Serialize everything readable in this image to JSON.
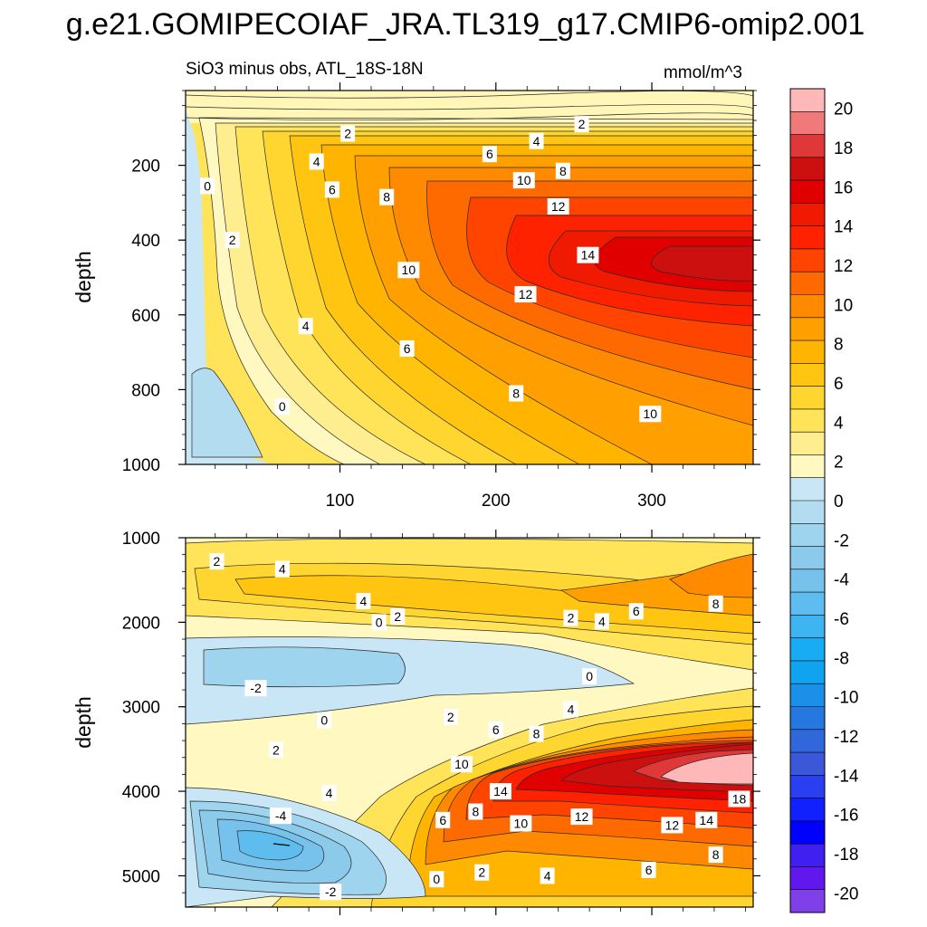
{
  "chart_data": {
    "type": "heatmap",
    "title": "g.e21.GOMIPECOIAF_JRA.TL319_g17.CMIP6-omip2.001",
    "subtitle_left": "SiO3 minus obs, ATL_18S-18N",
    "subtitle_right": "mmol/m^3",
    "panels": [
      {
        "name": "upper",
        "ylabel": "depth",
        "ylim": [
          1000,
          0
        ],
        "yticks": [
          200,
          400,
          600,
          800,
          1000
        ],
        "xlim": [
          1,
          365
        ],
        "xticks": [
          100,
          200,
          300
        ],
        "xtick_labels_shown": true,
        "contour_labels": [
          {
            "x": 15,
            "y": 255,
            "text": "0"
          },
          {
            "x": 31,
            "y": 400,
            "text": "2"
          },
          {
            "x": 63,
            "y": 845,
            "text": "0"
          },
          {
            "x": 78,
            "y": 630,
            "text": "4"
          },
          {
            "x": 85,
            "y": 190,
            "text": "4"
          },
          {
            "x": 95,
            "y": 265,
            "text": "6"
          },
          {
            "x": 105,
            "y": 115,
            "text": "2"
          },
          {
            "x": 130,
            "y": 285,
            "text": "8"
          },
          {
            "x": 143,
            "y": 690,
            "text": "6"
          },
          {
            "x": 144,
            "y": 480,
            "text": "10"
          },
          {
            "x": 196,
            "y": 170,
            "text": "6"
          },
          {
            "x": 213,
            "y": 810,
            "text": "8"
          },
          {
            "x": 218,
            "y": 240,
            "text": "10"
          },
          {
            "x": 219,
            "y": 545,
            "text": "12"
          },
          {
            "x": 226,
            "y": 135,
            "text": "4"
          },
          {
            "x": 240,
            "y": 310,
            "text": "12"
          },
          {
            "x": 243,
            "y": 215,
            "text": "8"
          },
          {
            "x": 259,
            "y": 440,
            "text": "14"
          },
          {
            "x": 255,
            "y": 90,
            "text": "2"
          },
          {
            "x": 299,
            "y": 865,
            "text": "10"
          }
        ]
      },
      {
        "name": "lower",
        "ylabel": "depth",
        "ylim": [
          5370,
          1000
        ],
        "yticks": [
          1000,
          2000,
          3000,
          4000,
          5000
        ],
        "xlim": [
          1,
          365
        ],
        "xticks": [
          100,
          200,
          300
        ],
        "xtick_labels_shown": false,
        "contour_labels": [
          {
            "x": 21,
            "y": 1280,
            "text": "2"
          },
          {
            "x": 63,
            "y": 1370,
            "text": "4"
          },
          {
            "x": 46,
            "y": 2780,
            "text": "-2"
          },
          {
            "x": 59,
            "y": 3510,
            "text": "2"
          },
          {
            "x": 62,
            "y": 4290,
            "text": "-4"
          },
          {
            "x": 93,
            "y": 4020,
            "text": "4"
          },
          {
            "x": 90,
            "y": 3160,
            "text": "0"
          },
          {
            "x": 94,
            "y": 5190,
            "text": "-2"
          },
          {
            "x": 115,
            "y": 1750,
            "text": "4"
          },
          {
            "x": 125,
            "y": 2000,
            "text": "0"
          },
          {
            "x": 137,
            "y": 1930,
            "text": "2"
          },
          {
            "x": 162,
            "y": 5040,
            "text": "0"
          },
          {
            "x": 166,
            "y": 4340,
            "text": "6"
          },
          {
            "x": 171,
            "y": 3120,
            "text": "2"
          },
          {
            "x": 178,
            "y": 3680,
            "text": "10"
          },
          {
            "x": 187,
            "y": 4240,
            "text": "8"
          },
          {
            "x": 191,
            "y": 4960,
            "text": "2"
          },
          {
            "x": 200,
            "y": 3270,
            "text": "6"
          },
          {
            "x": 203,
            "y": 4000,
            "text": "14"
          },
          {
            "x": 216,
            "y": 4380,
            "text": "10"
          },
          {
            "x": 226,
            "y": 3320,
            "text": "8"
          },
          {
            "x": 233,
            "y": 5000,
            "text": "4"
          },
          {
            "x": 248,
            "y": 1950,
            "text": "2"
          },
          {
            "x": 248,
            "y": 3030,
            "text": "4"
          },
          {
            "x": 255,
            "y": 4300,
            "text": "12"
          },
          {
            "x": 260,
            "y": 2640,
            "text": "0"
          },
          {
            "x": 268,
            "y": 1990,
            "text": "4"
          },
          {
            "x": 290,
            "y": 1870,
            "text": "6"
          },
          {
            "x": 298,
            "y": 4930,
            "text": "6"
          },
          {
            "x": 313,
            "y": 4400,
            "text": "12"
          },
          {
            "x": 335,
            "y": 4340,
            "text": "14"
          },
          {
            "x": 341,
            "y": 1780,
            "text": "8"
          },
          {
            "x": 341,
            "y": 4750,
            "text": "8"
          },
          {
            "x": 356,
            "y": 4090,
            "text": "18"
          }
        ]
      }
    ],
    "colorbar": {
      "range": [
        -21,
        21
      ],
      "labels": [
        "20",
        "18",
        "16",
        "14",
        "12",
        "10",
        "8",
        "6",
        "4",
        "2",
        "0",
        "-2",
        "-4",
        "-6",
        "-8",
        "-10",
        "-12",
        "-14",
        "-16",
        "-18",
        "-20"
      ],
      "colors": [
        "#ffb8b8",
        "#f07a7a",
        "#e03838",
        "#cc1010",
        "#e00000",
        "#f01a00",
        "#ff2200",
        "#ff4400",
        "#ff6a00",
        "#ff8a00",
        "#ffa000",
        "#ffb400",
        "#ffc510",
        "#ffd530",
        "#ffe45a",
        "#ffee90",
        "#fff8c0",
        "#c8e6f5",
        "#b4dcf0",
        "#9fd4ee",
        "#8ccaec",
        "#76c2ec",
        "#5ebcee",
        "#3eb4f0",
        "#18acf4",
        "#10a4f0",
        "#1a90e8",
        "#2478e0",
        "#3068dc",
        "#3c58d8",
        "#2a40f0",
        "#1020ff",
        "#0000ff",
        "#4020f0",
        "#6018ec",
        "#8040e8"
      ]
    }
  }
}
